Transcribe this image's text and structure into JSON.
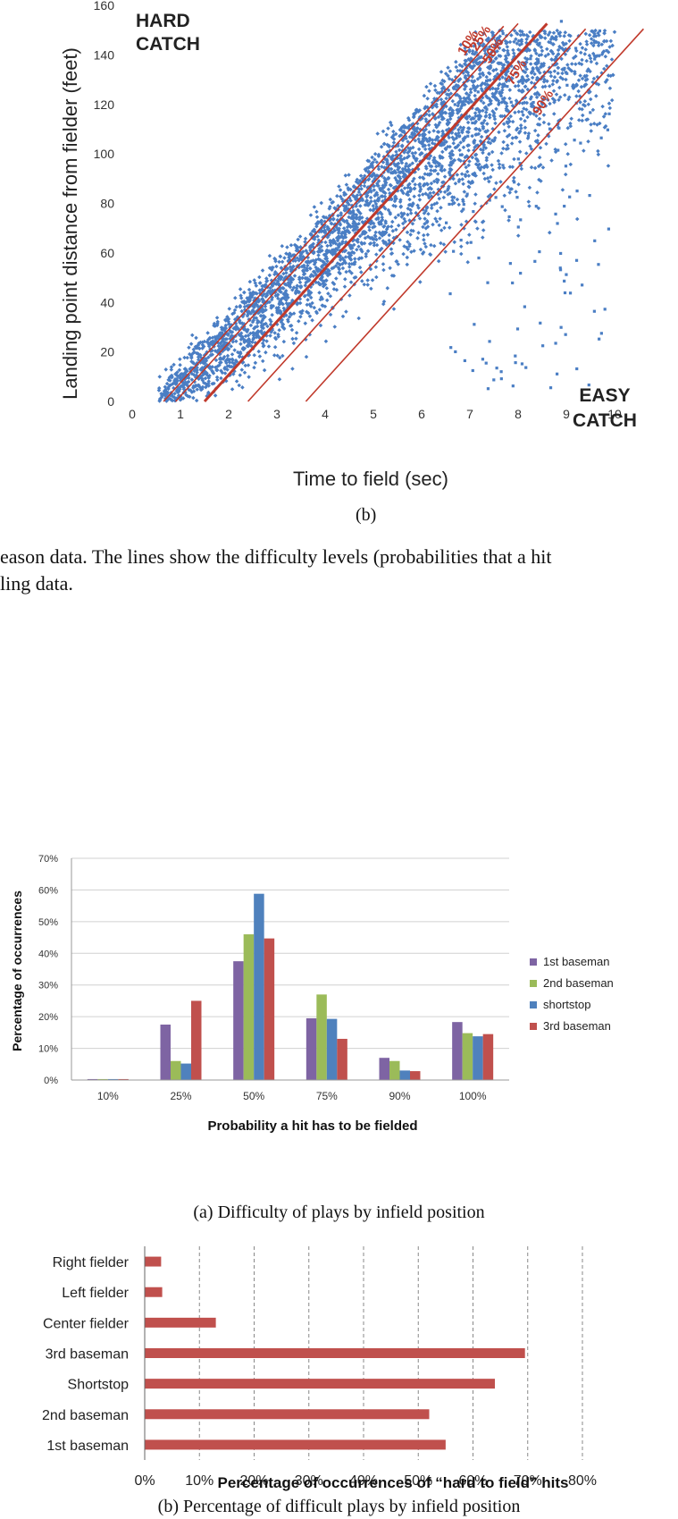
{
  "chart_data": [
    {
      "type": "scatter",
      "title": "",
      "xlabel": "Time to field (sec)",
      "ylabel": "Landing point distance from fielder (feet)",
      "xlim": [
        0,
        10
      ],
      "ylim": [
        0,
        160
      ],
      "xticks": [
        "0",
        "1",
        "2",
        "3",
        "4",
        "5",
        "6",
        "7",
        "8",
        "9",
        "10"
      ],
      "yticks": [
        "0",
        "20",
        "40",
        "60",
        "80",
        "100",
        "120",
        "140",
        "160"
      ],
      "annotations": {
        "hard": [
          "HARD",
          "CATCH"
        ],
        "easy": [
          "EASY",
          "CATCH"
        ]
      },
      "point_color": "#4a7ec4",
      "line_color": "#c0392b",
      "series_description_points": "approx. 9000 hits spread along band from (0.6,0) to (7,150)",
      "difficulty_lines": [
        {
          "label": "10%",
          "x0": 0.65,
          "x1": 7.7
        },
        {
          "label": "25%",
          "x0": 0.9,
          "x1": 8.0
        },
        {
          "label": "50%",
          "x0": 1.5,
          "x1": 8.6
        },
        {
          "label": "75%",
          "x0": 2.4,
          "x1": 9.4
        },
        {
          "label": "90%",
          "x0": 3.6,
          "x1": 10.6
        }
      ],
      "subcaption": "(b)"
    },
    {
      "type": "bar",
      "xlabel": "Probability a hit has to be fielded",
      "ylabel": "Percentage of occurrences",
      "ylim": [
        0,
        70
      ],
      "yticks": [
        "0%",
        "10%",
        "20%",
        "30%",
        "40%",
        "50%",
        "60%",
        "70%"
      ],
      "categories": [
        "10%",
        "25%",
        "50%",
        "75%",
        "90%",
        "100%"
      ],
      "series": [
        {
          "name": "1st baseman",
          "color": "#7e64a3",
          "values": [
            0.3,
            17.5,
            37.5,
            19.5,
            7,
            18.3
          ]
        },
        {
          "name": "2nd baseman",
          "color": "#9bbb59",
          "values": [
            0.3,
            6,
            46,
            27,
            6,
            14.8
          ]
        },
        {
          "name": "shortstop",
          "color": "#4f81bd",
          "values": [
            0.3,
            5.2,
            58.8,
            19.3,
            3,
            13.8
          ]
        },
        {
          "name": "3rd baseman",
          "color": "#c0504d",
          "values": [
            0.3,
            25,
            44.7,
            13,
            2.8,
            14.5
          ]
        }
      ],
      "legend": "right",
      "subcaption": "(a) Difficulty of plays by infield position"
    },
    {
      "type": "bar",
      "orientation": "horizontal",
      "xlabel": "Percentage of occurrences of “hard to field” hits",
      "xlim": [
        0,
        80
      ],
      "xticks": [
        "0%",
        "10%",
        "20%",
        "30%",
        "40%",
        "50%",
        "60%",
        "70%",
        "80%"
      ],
      "categories": [
        "Right fielder",
        "Left fielder",
        "Center fielder",
        "3rd baseman",
        "Shortstop",
        "2nd baseman",
        "1st baseman"
      ],
      "values": [
        3,
        3.2,
        13,
        69.5,
        64,
        52,
        55
      ],
      "color": "#c0504d",
      "subcaption": "(b) Percentage of difficult plays by infield position"
    }
  ],
  "text_fragments": {
    "line1": "eason data. The lines show the difficulty levels (probabilities that a hit",
    "line2": "ling data."
  }
}
